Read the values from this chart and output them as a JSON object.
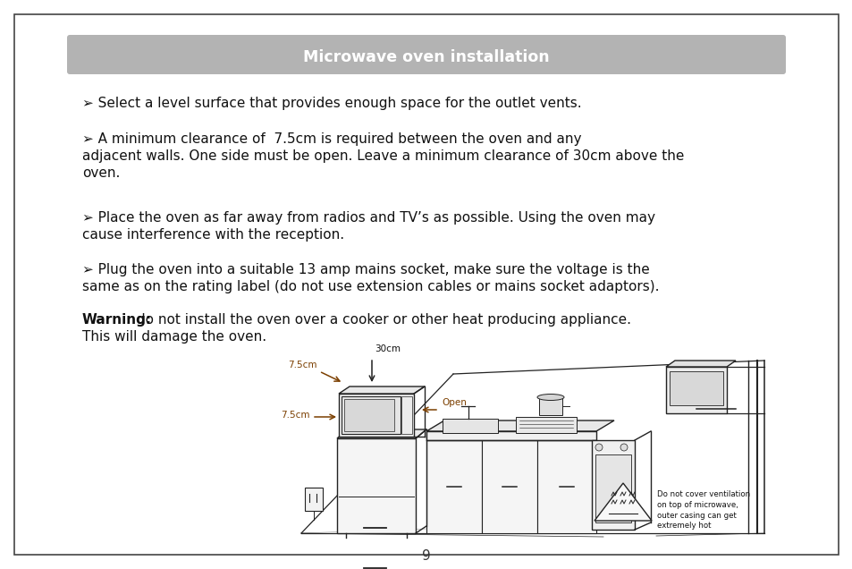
{
  "title": "Microwave oven installation",
  "title_bg": "#b3b3b3",
  "title_color": "#ffffff",
  "page_bg": "#ffffff",
  "border_color": "#444444",
  "body_color": "#111111",
  "arrow_color": "#7B3F00",
  "bullet": "➢",
  "line1": "Select a level surface that provides enough space for the outlet vents.",
  "line2a": "A minimum clearance of  7.5cm is required between the oven and any",
  "line2b": "adjacent walls. One side must be open. Leave a minimum clearance of 30cm above the",
  "line2c": "oven.",
  "line3a": "Place the oven as far away from radios and TV’s as possible. Using the oven may",
  "line3b": "cause interference with the reception.",
  "line4a": "Plug the oven into a suitable 13 amp mains socket, make sure the voltage is the",
  "line4b": "same as on the rating label (do not use extension cables or mains socket adaptors).",
  "warn_bold": "Warning:",
  "warn_text": " do not install the oven over a cooker or other heat producing appliance.",
  "warn_text2": "This will damage the oven.",
  "page_number": "9",
  "fs_body": 11.0,
  "fs_title": 12.5,
  "lh": 19
}
